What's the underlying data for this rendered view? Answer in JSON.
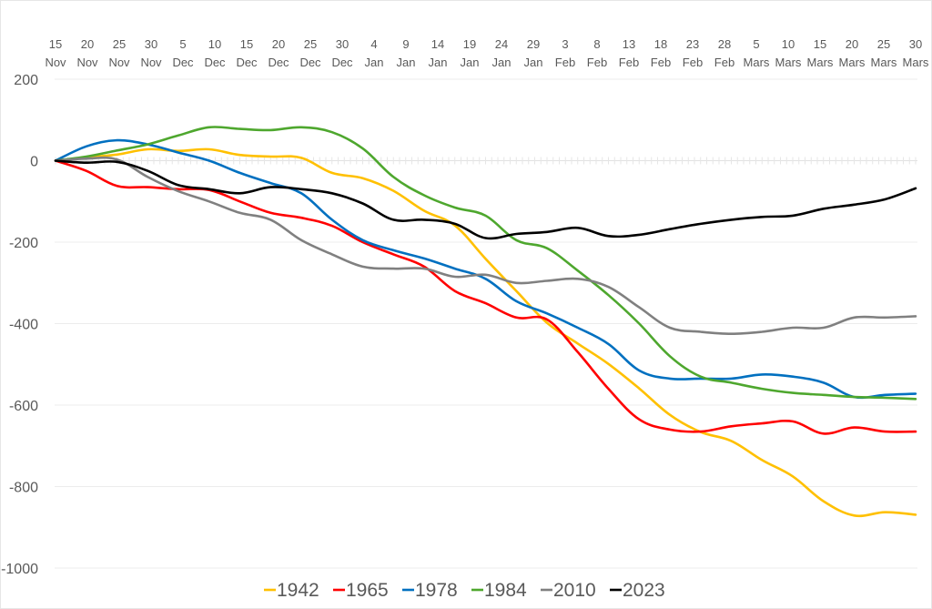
{
  "chart_data": {
    "type": "line",
    "title": "",
    "xlabel": "",
    "ylabel": "",
    "ylim": [
      -1000,
      200
    ],
    "yticks": [
      200,
      0,
      -200,
      -400,
      -600,
      -800,
      -1000
    ],
    "grid": true,
    "legend_position": "bottom",
    "x_ticks": [
      {
        "day": "15",
        "month": "Nov"
      },
      {
        "day": "20",
        "month": "Nov"
      },
      {
        "day": "25",
        "month": "Nov"
      },
      {
        "day": "30",
        "month": "Nov"
      },
      {
        "day": "5",
        "month": "Dec"
      },
      {
        "day": "10",
        "month": "Dec"
      },
      {
        "day": "15",
        "month": "Dec"
      },
      {
        "day": "20",
        "month": "Dec"
      },
      {
        "day": "25",
        "month": "Dec"
      },
      {
        "day": "30",
        "month": "Dec"
      },
      {
        "day": "4",
        "month": "Jan"
      },
      {
        "day": "9",
        "month": "Jan"
      },
      {
        "day": "14",
        "month": "Jan"
      },
      {
        "day": "19",
        "month": "Jan"
      },
      {
        "day": "24",
        "month": "Jan"
      },
      {
        "day": "29",
        "month": "Jan"
      },
      {
        "day": "3",
        "month": "Feb"
      },
      {
        "day": "8",
        "month": "Feb"
      },
      {
        "day": "13",
        "month": "Feb"
      },
      {
        "day": "18",
        "month": "Feb"
      },
      {
        "day": "23",
        "month": "Feb"
      },
      {
        "day": "28",
        "month": "Feb"
      },
      {
        "day": "5",
        "month": "Mars"
      },
      {
        "day": "10",
        "month": "Mars"
      },
      {
        "day": "15",
        "month": "Mars"
      },
      {
        "day": "20",
        "month": "Mars"
      },
      {
        "day": "25",
        "month": "Mars"
      },
      {
        "day": "30",
        "month": "Mars"
      }
    ],
    "x_range_days": [
      0,
      140
    ],
    "x_step_days": 5,
    "series": [
      {
        "name": "1942",
        "color": "#FFC000",
        "values": [
          0,
          8,
          15,
          28,
          24,
          28,
          14,
          10,
          7,
          -30,
          -43,
          -74,
          -123,
          -159,
          -241,
          -320,
          -398,
          -449,
          -499,
          -559,
          -624,
          -666,
          -688,
          -735,
          -775,
          -836,
          -871,
          -863,
          -869
        ]
      },
      {
        "name": "1965",
        "color": "#FF0000",
        "values": [
          0,
          -25,
          -62,
          -65,
          -70,
          -72,
          -100,
          -128,
          -140,
          -160,
          -200,
          -230,
          -260,
          -320,
          -350,
          -385,
          -390,
          -470,
          -560,
          -635,
          -660,
          -665,
          -652,
          -645,
          -640,
          -670,
          -655,
          -665,
          -665
        ]
      },
      {
        "name": "1978",
        "color": "#0070C0",
        "values": [
          0,
          35,
          50,
          40,
          20,
          0,
          -30,
          -55,
          -80,
          -145,
          -195,
          -220,
          -240,
          -265,
          -290,
          -345,
          -375,
          -410,
          -450,
          -515,
          -535,
          -535,
          -535,
          -525,
          -530,
          -545,
          -580,
          -575,
          -572
        ]
      },
      {
        "name": "1984",
        "color": "#4EA72E",
        "values": [
          0,
          10,
          25,
          40,
          62,
          82,
          78,
          75,
          82,
          70,
          30,
          -40,
          -85,
          -115,
          -135,
          -195,
          -215,
          -270,
          -330,
          -400,
          -480,
          -530,
          -545,
          -560,
          -570,
          -575,
          -580,
          -582,
          -585
        ]
      },
      {
        "name": "2010",
        "color": "#808080",
        "values": [
          0,
          5,
          3,
          -40,
          -75,
          -100,
          -128,
          -145,
          -195,
          -230,
          -260,
          -265,
          -265,
          -285,
          -280,
          -300,
          -295,
          -290,
          -310,
          -360,
          -410,
          -420,
          -425,
          -420,
          -410,
          -410,
          -385,
          -385,
          -382
        ]
      },
      {
        "name": "2023",
        "color": "#000000",
        "values": [
          0,
          -5,
          -3,
          -25,
          -60,
          -70,
          -80,
          -65,
          -70,
          -80,
          -105,
          -145,
          -145,
          -155,
          -190,
          -180,
          -175,
          -165,
          -185,
          -182,
          -168,
          -155,
          -145,
          -138,
          -135,
          -118,
          -108,
          -95,
          -68
        ]
      }
    ]
  }
}
